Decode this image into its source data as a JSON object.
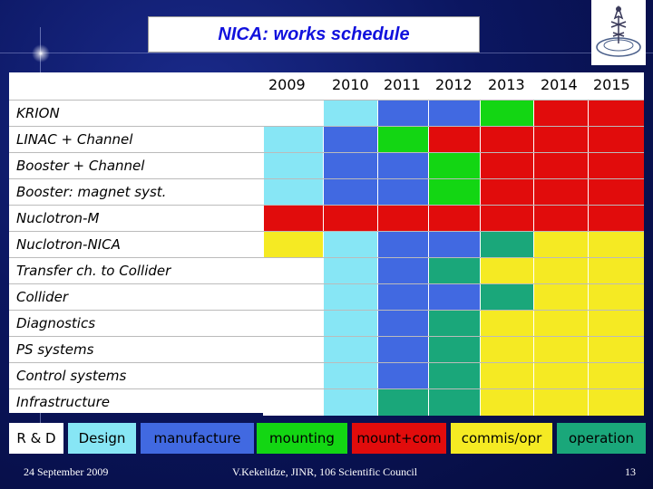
{
  "title": "NICA:  works schedule",
  "years": [
    "2009",
    "2010",
    "2011",
    "2012",
    "2013",
    "2014",
    "2015"
  ],
  "colors": {
    "rd": "#ffffff",
    "design": "#87e6f5",
    "manufacture": "#4169e1",
    "mounting": "#13d613",
    "mountcom": "#e10c0c",
    "commis": "#f5ea23",
    "operation": "#1aa77a"
  },
  "rows": [
    {
      "label": "KRION",
      "cells": [
        "rd",
        "design",
        "manufacture",
        "manufacture",
        "mounting",
        "mountcom",
        "mountcom"
      ]
    },
    {
      "label": "LINAC + Channel",
      "cells": [
        "design",
        "manufacture",
        "mounting",
        "mountcom",
        "mountcom",
        "mountcom",
        "mountcom"
      ]
    },
    {
      "label": "Booster + Channel",
      "cells": [
        "design",
        "manufacture",
        "manufacture",
        "mounting",
        "mountcom",
        "mountcom",
        "mountcom"
      ]
    },
    {
      "label": "Booster: magnet syst.",
      "cells": [
        "design",
        "manufacture",
        "manufacture",
        "mounting",
        "mountcom",
        "mountcom",
        "mountcom"
      ]
    },
    {
      "label": "Nuclotron-M",
      "cells": [
        "mountcom",
        "mountcom",
        "mountcom",
        "mountcom",
        "mountcom",
        "mountcom",
        "mountcom"
      ]
    },
    {
      "label": "Nuclotron-NICA",
      "cells": [
        "commis",
        "design",
        "manufacture",
        "manufacture",
        "operation",
        "commis",
        "commis"
      ]
    },
    {
      "label": "Transfer ch. to  Collider",
      "cells": [
        "rd",
        "design",
        "manufacture",
        "operation",
        "commis",
        "commis",
        "commis"
      ]
    },
    {
      "label": "Collider",
      "cells": [
        "rd",
        "design",
        "manufacture",
        "manufacture",
        "operation",
        "commis",
        "commis"
      ]
    },
    {
      "label": "Diagnostics",
      "cells": [
        "rd",
        "design",
        "manufacture",
        "operation",
        "commis",
        "commis",
        "commis"
      ]
    },
    {
      "label": "PS systems",
      "cells": [
        "rd",
        "design",
        "manufacture",
        "operation",
        "commis",
        "commis",
        "commis"
      ]
    },
    {
      "label": "Control systems",
      "cells": [
        "rd",
        "design",
        "manufacture",
        "operation",
        "commis",
        "commis",
        "commis"
      ]
    },
    {
      "label": "Infrastructure",
      "cells": [
        "rd",
        "design",
        "operation",
        "operation",
        "commis",
        "commis",
        "commis"
      ]
    }
  ],
  "legend": [
    {
      "key": "rd",
      "label": "R & D",
      "text_color": "#000000"
    },
    {
      "key": "design",
      "label": "Design",
      "text_color": "#000000"
    },
    {
      "key": "manufacture",
      "label": "manufacture",
      "text_color": "#000000"
    },
    {
      "key": "mounting",
      "label": "mounting",
      "text_color": "#000000"
    },
    {
      "key": "mountcom",
      "label": "mount+com",
      "text_color": "#000000"
    },
    {
      "key": "commis",
      "label": "commis/opr",
      "text_color": "#000000"
    },
    {
      "key": "operation",
      "label": "operation",
      "text_color": "#000000"
    }
  ],
  "footer": {
    "date": "24 September 2009",
    "author": "V.Kekelidze, JINR, 106 Scientific Council",
    "page": "13"
  }
}
